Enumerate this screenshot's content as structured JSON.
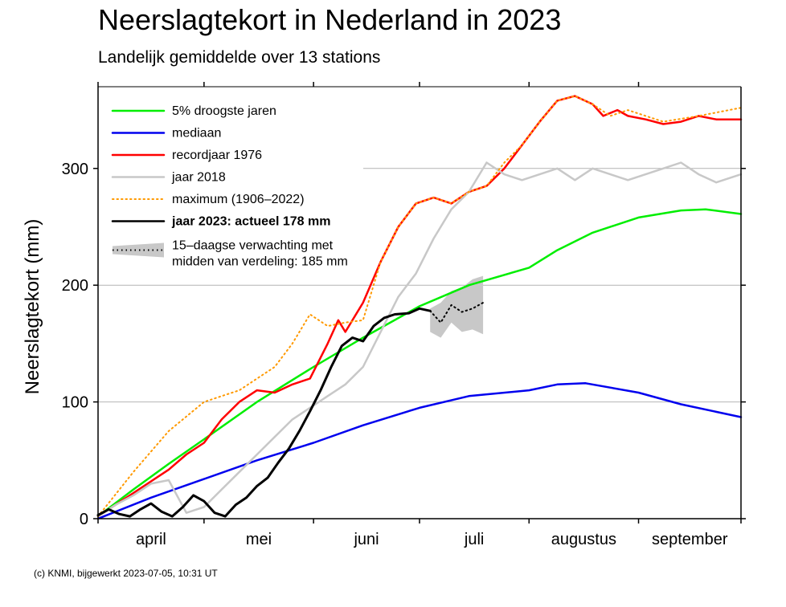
{
  "header": {
    "title": "Neerslagtekort in Nederland in 2023",
    "subtitle": "Landelijk gemiddelde over 13 stations"
  },
  "footer": {
    "credit": "(c) KNMI, bijgewerkt 2023-07-05, 10:31 UT"
  },
  "chart_data": {
    "type": "line",
    "ylabel": "Neerslagtekort (mm)",
    "ylim": [
      0,
      370
    ],
    "yticks": [
      0,
      100,
      200,
      300
    ],
    "x_unit": "day of period starting 1 april",
    "xlim": [
      0,
      182
    ],
    "months": [
      {
        "label": "april",
        "start": 0,
        "end": 30
      },
      {
        "label": "mei",
        "start": 30,
        "end": 61
      },
      {
        "label": "juni",
        "start": 61,
        "end": 91
      },
      {
        "label": "juli",
        "start": 91,
        "end": 122
      },
      {
        "label": "augustus",
        "start": 122,
        "end": 153
      },
      {
        "label": "september",
        "start": 153,
        "end": 182
      }
    ],
    "grid": "horizontal",
    "legend_position": "top-left",
    "series": [
      {
        "name": "5% droogste jaren",
        "color": "#00ee00",
        "style": "solid",
        "x": [
          0,
          10,
          20,
          30,
          45,
          61,
          75,
          91,
          105,
          122,
          130,
          140,
          153,
          165,
          172,
          182
        ],
        "y": [
          2,
          25,
          47,
          68,
          100,
          130,
          155,
          182,
          200,
          215,
          230,
          245,
          258,
          264,
          265,
          261
        ]
      },
      {
        "name": "mediaan",
        "color": "#0000ee",
        "style": "solid",
        "x": [
          0,
          15,
          30,
          45,
          61,
          75,
          91,
          105,
          122,
          130,
          138,
          153,
          165,
          182
        ],
        "y": [
          0,
          18,
          34,
          50,
          65,
          80,
          95,
          105,
          110,
          115,
          116,
          108,
          98,
          87
        ]
      },
      {
        "name": "recordjaar 1976",
        "color": "#ff0000",
        "style": "solid",
        "x": [
          0,
          5,
          10,
          20,
          25,
          30,
          35,
          40,
          45,
          50,
          55,
          60,
          65,
          68,
          70,
          75,
          80,
          85,
          90,
          95,
          100,
          105,
          110,
          115,
          120,
          125,
          130,
          135,
          140,
          143,
          147,
          150,
          155,
          160,
          165,
          170,
          175,
          182
        ],
        "y": [
          2,
          12,
          22,
          42,
          55,
          65,
          85,
          100,
          110,
          108,
          115,
          120,
          150,
          170,
          160,
          185,
          220,
          250,
          270,
          275,
          270,
          280,
          285,
          300,
          320,
          340,
          358,
          362,
          355,
          345,
          350,
          345,
          342,
          338,
          340,
          345,
          342,
          342
        ]
      },
      {
        "name": "jaar 2018",
        "color": "#c8c8c8",
        "style": "solid",
        "x": [
          0,
          5,
          10,
          15,
          20,
          25,
          30,
          35,
          40,
          45,
          50,
          55,
          60,
          65,
          70,
          75,
          80,
          85,
          90,
          95,
          100,
          105,
          110,
          115,
          120,
          125,
          130,
          135,
          140,
          145,
          150,
          155,
          160,
          165,
          170,
          175,
          182
        ],
        "y": [
          2,
          12,
          20,
          30,
          33,
          5,
          10,
          25,
          40,
          55,
          70,
          85,
          95,
          105,
          115,
          130,
          160,
          190,
          210,
          240,
          265,
          280,
          305,
          295,
          290,
          295,
          300,
          290,
          300,
          295,
          290,
          295,
          300,
          305,
          295,
          288,
          295
        ]
      },
      {
        "name": "maximum (1906-2022)",
        "color": "#ff9900",
        "style": "dotted",
        "x": [
          0,
          10,
          20,
          30,
          35,
          40,
          45,
          50,
          55,
          60,
          65,
          70,
          75,
          80,
          85,
          90,
          95,
          100,
          105,
          110,
          115,
          120,
          125,
          130,
          135,
          140,
          145,
          150,
          160,
          170,
          182
        ],
        "y": [
          2,
          40,
          75,
          100,
          105,
          110,
          120,
          130,
          150,
          175,
          165,
          168,
          170,
          220,
          250,
          270,
          275,
          270,
          280,
          285,
          305,
          320,
          340,
          358,
          362,
          355,
          345,
          350,
          340,
          345,
          352
        ]
      },
      {
        "name": "jaar 2023: actueel 178 mm",
        "color": "#000000",
        "style": "solid",
        "x": [
          0,
          3,
          6,
          9,
          12,
          15,
          18,
          21,
          24,
          27,
          30,
          33,
          36,
          39,
          42,
          45,
          48,
          51,
          54,
          57,
          60,
          63,
          66,
          69,
          72,
          75,
          78,
          81,
          84,
          88,
          91,
          94
        ],
        "y": [
          3,
          8,
          4,
          2,
          8,
          13,
          6,
          2,
          10,
          20,
          15,
          5,
          2,
          12,
          18,
          28,
          35,
          48,
          60,
          75,
          92,
          110,
          130,
          148,
          155,
          152,
          165,
          172,
          175,
          176,
          180,
          178
        ]
      },
      {
        "name": "15-daagse verwachting met midden van verdeling: 185 mm",
        "color": "#000000",
        "style": "dotted",
        "x": [
          94,
          97,
          100,
          103,
          106,
          109
        ],
        "y": [
          178,
          168,
          183,
          177,
          180,
          185
        ]
      }
    ],
    "forecast_band": {
      "color": "#c8c8c8",
      "x": [
        94,
        97,
        100,
        103,
        106,
        109
      ],
      "lower": [
        160,
        155,
        168,
        160,
        162,
        158
      ],
      "upper": [
        180,
        185,
        195,
        198,
        205,
        208
      ]
    },
    "legend": [
      {
        "label": "5% droogste jaren",
        "color": "#00ee00",
        "style": "solid"
      },
      {
        "label": "mediaan",
        "color": "#0000ee",
        "style": "solid"
      },
      {
        "label": "recordjaar 1976",
        "color": "#ff0000",
        "style": "solid"
      },
      {
        "label": "jaar 2018",
        "color": "#c8c8c8",
        "style": "solid"
      },
      {
        "label": "maximum (1906–2022)",
        "color": "#ff9900",
        "style": "dotted"
      },
      {
        "label": "jaar 2023: actueel 178 mm",
        "color": "#000000",
        "style": "solid",
        "bold": true
      },
      {
        "label": "15–daagse verwachting met",
        "label2": "midden van verdeling: 185 mm",
        "color": "#000000",
        "style": "band"
      }
    ]
  }
}
